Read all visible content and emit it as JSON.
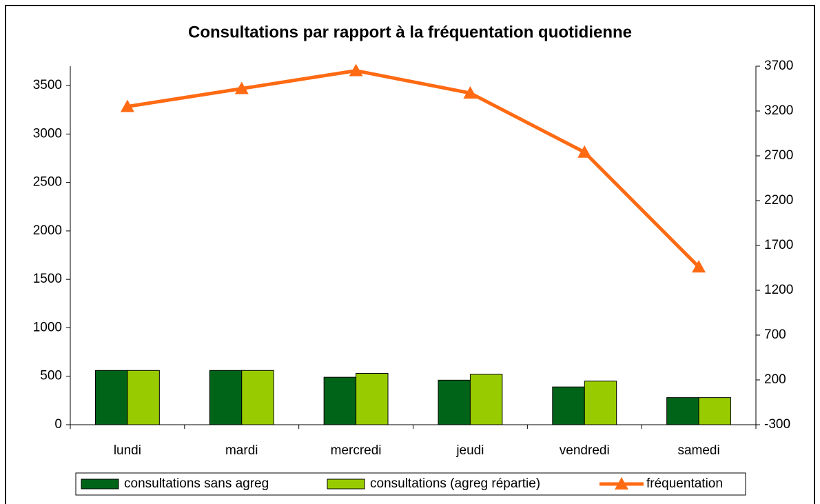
{
  "chart_data": {
    "type": "bar",
    "title": "Consultations par rapport à la fréquentation quotidienne",
    "categories": [
      "lundi",
      "mardi",
      "mercredi",
      "jeudi",
      "vendredi",
      "samedi"
    ],
    "series": [
      {
        "name": "consultations sans agreg",
        "color": "#006418",
        "type": "bar",
        "values": [
          560,
          560,
          490,
          460,
          390,
          280
        ]
      },
      {
        "name": "consultations (agreg répartie)",
        "color": "#99cc00",
        "type": "bar",
        "values": [
          560,
          560,
          530,
          520,
          450,
          280
        ]
      },
      {
        "name": "fréquentation",
        "color": "#ff6a13",
        "type": "line",
        "axis": "y2",
        "values": [
          3250,
          3450,
          3650,
          3400,
          2740,
          1460
        ]
      }
    ],
    "ylim": [
      0,
      3700
    ],
    "yticks": [
      0,
      500,
      1000,
      1500,
      2000,
      2500,
      3000,
      3500
    ],
    "y2lim": [
      -300,
      3700
    ],
    "y2ticks": [
      -300,
      200,
      700,
      1200,
      1700,
      2200,
      2700,
      3200,
      3700
    ],
    "legend": "bottom"
  }
}
